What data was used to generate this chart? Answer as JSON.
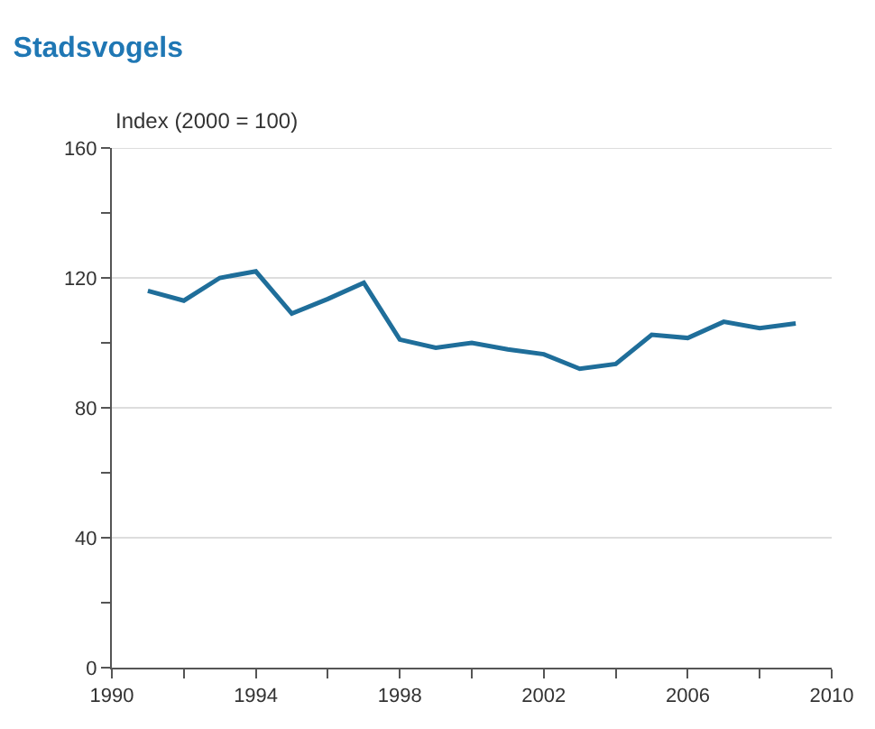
{
  "chart_data": {
    "type": "line",
    "title": "Stadsvogels",
    "ylabel": "Index (2000 = 100)",
    "x": [
      1991,
      1992,
      1993,
      1994,
      1995,
      1996,
      1997,
      1998,
      1999,
      2000,
      2001,
      2002,
      2003,
      2004,
      2005,
      2006,
      2007,
      2008,
      2009
    ],
    "series": [
      {
        "color": "#1f6e9a",
        "values": [
          116,
          113,
          120,
          122,
          109,
          113.5,
          118.5,
          101,
          98.5,
          100,
          98,
          96.5,
          92,
          93.5,
          102.5,
          101.5,
          106.5,
          104.5,
          106
        ]
      }
    ],
    "xlim": [
      1990,
      2010
    ],
    "xticks": [
      1990,
      {
        "value": 1992,
        "label": null
      },
      1994,
      {
        "value": 1996,
        "label": null
      },
      1998,
      {
        "value": 2000,
        "label": null
      },
      2002,
      {
        "value": 2004,
        "label": null
      },
      2006,
      {
        "value": 2008,
        "label": null
      },
      2010
    ],
    "ylim": [
      0,
      160
    ],
    "yticks": [
      0,
      {
        "value": 20,
        "label": null
      },
      40,
      {
        "value": 60,
        "label": null
      },
      80,
      {
        "value": 100,
        "label": null
      },
      120,
      {
        "value": 140,
        "label": null
      },
      160
    ],
    "grid": "y",
    "marker": "none",
    "line_style": "solid"
  }
}
